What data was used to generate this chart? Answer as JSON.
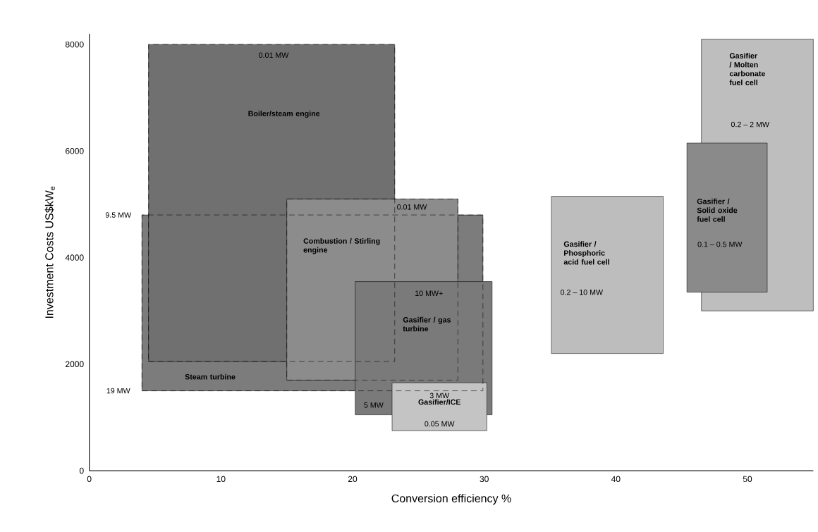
{
  "chart_data": {
    "type": "area",
    "xlabel": "Conversion efficiency %",
    "ylabel": "Investment Costs US$kW$_{e}$",
    "xlim": [
      0,
      55
    ],
    "ylim": [
      0,
      8200
    ],
    "xticks": [
      0,
      10,
      20,
      30,
      40,
      50
    ],
    "yticks": [
      0,
      2000,
      4000,
      6000,
      8000
    ],
    "grid": false,
    "series": [
      {
        "name": "Steam turbine",
        "color": "#7c7c7c",
        "line_style": "dashed",
        "x": [
          4.0,
          29.9,
          29.9,
          4.0,
          4.0
        ],
        "values": [
          1500,
          1500,
          4800,
          4800,
          1500
        ]
      },
      {
        "name": "Boiler/steam engine",
        "color": "#707070",
        "line_style": "dashed",
        "x": [
          4.5,
          23.2,
          23.2,
          4.5,
          4.5
        ],
        "values": [
          2050,
          2050,
          8000,
          8000,
          2050
        ]
      },
      {
        "name": "Combustion / Stirling engine",
        "color": "#8c8c8c",
        "line_style": "dashed",
        "x": [
          15.0,
          28.0,
          28.0,
          15.0,
          15.0
        ],
        "values": [
          1700,
          1700,
          5100,
          5100,
          1700
        ]
      },
      {
        "name": "Gasifier / gas turbine",
        "color": "#7a7a7a",
        "x": [
          20.2,
          30.6,
          30.6,
          20.2,
          20.2
        ],
        "values": [
          1050,
          1050,
          3550,
          3550,
          1050
        ]
      },
      {
        "name": "Gasifier/ICE",
        "color": "#c4c4c4",
        "x": [
          23.0,
          30.2,
          30.2,
          23.0,
          23.0
        ],
        "values": [
          750,
          750,
          1650,
          1650,
          750
        ]
      },
      {
        "name": "Gasifier / Phosphoric acid fuel cell",
        "color": "#bdbdbd",
        "x": [
          35.1,
          43.6,
          43.6,
          35.1,
          35.1
        ],
        "values": [
          2200,
          2200,
          5150,
          5150,
          2200
        ]
      },
      {
        "name": "Gasifier / Molten carbonate fuel cell",
        "color": "#bebebe",
        "x": [
          46.5,
          55.0,
          55.0,
          46.5,
          46.5
        ],
        "values": [
          3000,
          3000,
          8100,
          8100,
          3000
        ]
      },
      {
        "name": "Gasifier / Solid oxide fuel cell",
        "color": "#8a8a8a",
        "x": [
          45.4,
          51.5,
          51.5,
          45.4,
          45.4
        ],
        "values": [
          3350,
          3350,
          6150,
          6150,
          3350
        ]
      }
    ],
    "annotations": [
      "0.01 MW",
      "0.01 MW",
      "9.5 MW",
      "19 MW",
      "10 MW+",
      "5 MW",
      "3 MW",
      "0.05 MW",
      "0.2 – 10 MW",
      "0.1 – 0.5 MW",
      "0.2 – 2 MW"
    ]
  }
}
